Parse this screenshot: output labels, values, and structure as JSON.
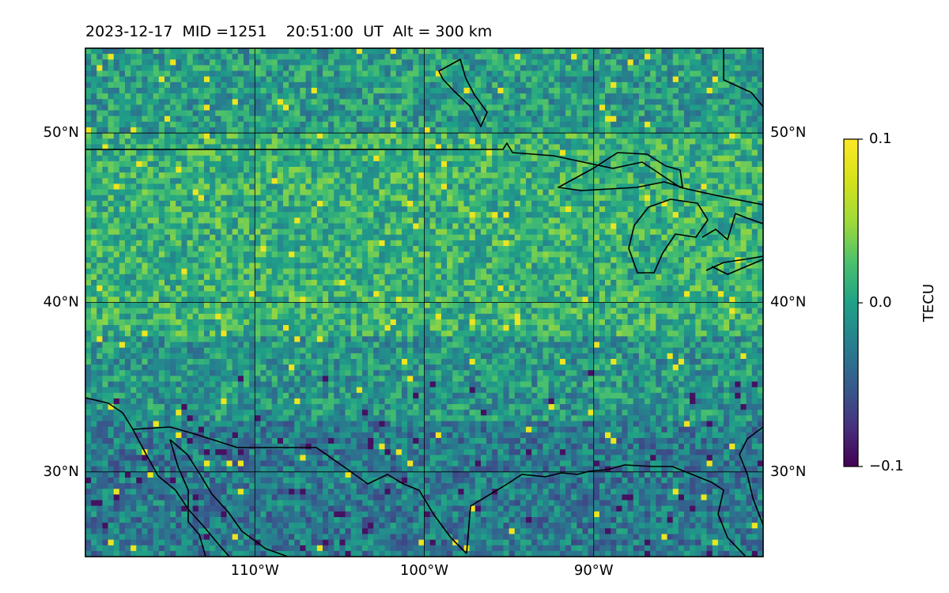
{
  "title": {
    "date": "2023-12-17",
    "mid": "MID =1251",
    "time": "20:51:00",
    "ut": "UT",
    "alt": "Alt = 300 km"
  },
  "map": {
    "extent": {
      "lon_min": -120,
      "lon_max": -80,
      "lat_min": 25,
      "lat_max": 55
    },
    "gridlines": "on",
    "lat_ticks": [
      {
        "lat": 50,
        "label": "50°N"
      },
      {
        "lat": 40,
        "label": "40°N"
      },
      {
        "lat": 30,
        "label": "30°N"
      }
    ],
    "lon_ticks": [
      {
        "lon": -110,
        "label": "110°W"
      },
      {
        "lon": -100,
        "label": "100°W"
      },
      {
        "lon": -90,
        "label": "90°W"
      }
    ],
    "colormap": "viridis",
    "field": "differential TEC, 0.33° pixels, darker (negative) band south of 35°N"
  },
  "colorbar": {
    "label": "TECU",
    "min": -0.1,
    "max": 0.1,
    "ticks": [
      {
        "value": 0.1,
        "label": "0.1"
      },
      {
        "value": 0.0,
        "label": "0.0"
      },
      {
        "value": -0.1,
        "label": "−0.1"
      }
    ]
  },
  "colors": {
    "viridis_low": "#440154",
    "viridis_mid": "#21908d",
    "viridis_high": "#fde725",
    "coastline": "#000000"
  }
}
